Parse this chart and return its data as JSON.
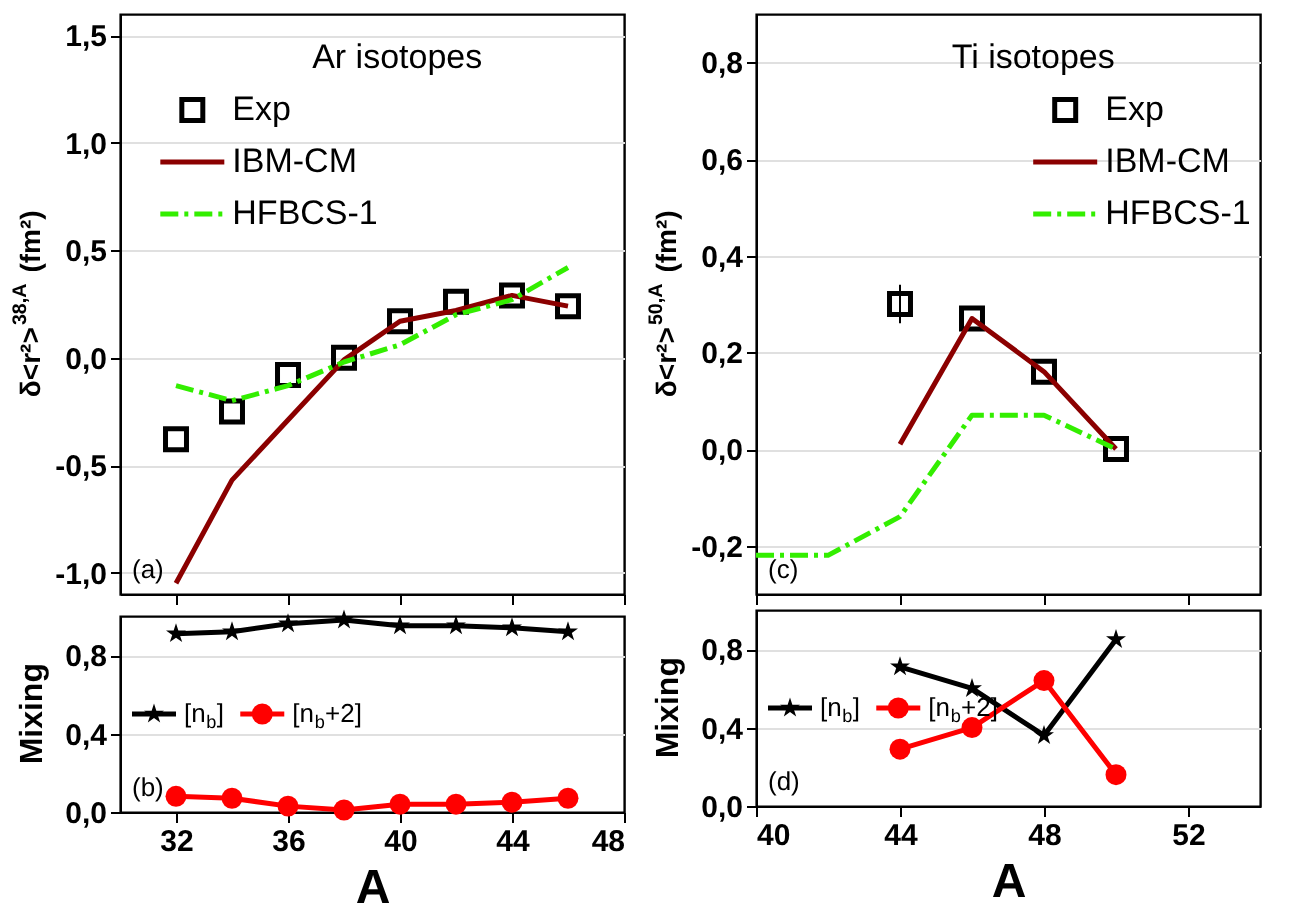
{
  "chart_data": [
    {
      "type": "line",
      "title": "Ar isotopes",
      "ylabel": "δ<r²>$^{38,A}$ (fm²)",
      "xlim": [
        30,
        48
      ],
      "xticks": [
        32,
        36,
        40,
        44,
        48
      ],
      "ylim": [
        -1.1,
        1.6
      ],
      "yticks": [
        {
          "value": -1.0,
          "label": "-1,0"
        },
        {
          "value": -0.5,
          "label": "-0,5"
        },
        {
          "value": 0.0,
          "label": "0,0"
        },
        {
          "value": 0.5,
          "label": "0,5"
        },
        {
          "value": 1.0,
          "label": "1,0"
        },
        {
          "value": 1.5,
          "label": "1,5"
        }
      ],
      "tick_labels": "y",
      "grid": "y",
      "legend": "top left",
      "annotations": [
        "(a)"
      ],
      "x": [
        32,
        34,
        36,
        38,
        40,
        42,
        44,
        46
      ],
      "series": [
        {
          "name": "Exp",
          "type": "scatter",
          "marker": "square",
          "color": "#000000",
          "values": [
            -0.38,
            -0.25,
            -0.08,
            0.0,
            0.17,
            0.26,
            0.29,
            0.24
          ]
        },
        {
          "name": "IBM-CM",
          "marker": "none",
          "line_style": "solid",
          "color": "#8b0000",
          "values": [
            -1.05,
            -0.57,
            -0.29,
            -0.01,
            0.17,
            0.22,
            0.29,
            0.24
          ]
        },
        {
          "name": "HFBCS-1",
          "marker": "none",
          "line_style": "dashed",
          "color": "#33ee00",
          "values": [
            -0.13,
            -0.2,
            -0.13,
            -0.02,
            0.06,
            0.2,
            0.27,
            0.42
          ]
        }
      ]
    },
    {
      "type": "line",
      "title": "Ti isotopes",
      "ylabel": "δ<r²>$^{50,A}$ (fm²)",
      "xlim": [
        40,
        54
      ],
      "xticks": [
        40,
        44,
        48,
        52
      ],
      "ylim": [
        -0.3,
        0.9
      ],
      "yticks": [
        {
          "value": -0.2,
          "label": "-0,2"
        },
        {
          "value": 0.0,
          "label": "0,0"
        },
        {
          "value": 0.2,
          "label": "0,2"
        },
        {
          "value": 0.4,
          "label": "0,4"
        },
        {
          "value": 0.6,
          "label": "0,6"
        },
        {
          "value": 0.8,
          "label": "0,8"
        }
      ],
      "tick_labels": "y",
      "grid": "y",
      "legend": "top right",
      "annotations": [
        "(c)"
      ],
      "x": [
        44,
        46,
        48,
        50
      ],
      "series": [
        {
          "name": "Exp",
          "type": "scatter",
          "marker": "square",
          "color": "#000000",
          "values": [
            0.3,
            0.27,
            0.16,
            0.0
          ],
          "errors": [
            0.04,
            null,
            null,
            null
          ]
        },
        {
          "name": "IBM-CM",
          "marker": "none",
          "line_style": "solid",
          "color": "#8b0000",
          "values": [
            0.01,
            0.27,
            0.16,
            0.0
          ]
        },
        {
          "name": "HFBCS-1",
          "marker": "none",
          "line_style": "dashed",
          "color": "#33ee00",
          "x": [
            40,
            42,
            44,
            46,
            48,
            50
          ],
          "values": [
            -0.22,
            -0.22,
            -0.14,
            0.07,
            0.07,
            0.0
          ]
        }
      ]
    },
    {
      "type": "line",
      "xlabel": "A",
      "ylabel": "Mixing",
      "xlim": [
        30,
        48
      ],
      "xticks": [
        32,
        36,
        40,
        44,
        48
      ],
      "ylim": [
        0,
        1.0
      ],
      "yticks": [
        {
          "value": 0.0,
          "label": "0,0"
        },
        {
          "value": 0.4,
          "label": "0,4"
        },
        {
          "value": 0.8,
          "label": "0,8"
        }
      ],
      "grid": "y",
      "legend": "left",
      "annotations": [
        "(b)"
      ],
      "x": [
        32,
        34,
        36,
        38,
        40,
        42,
        44,
        46
      ],
      "series": [
        {
          "name": "[n$_{b}$]",
          "marker": "star",
          "line_style": "solid",
          "color": "#000000",
          "values": [
            0.91,
            0.92,
            0.96,
            0.98,
            0.95,
            0.95,
            0.94,
            0.92
          ]
        },
        {
          "name": "[n$_{b}$+2]",
          "marker": "circle",
          "line_style": "solid",
          "color": "#ff0000",
          "values": [
            0.08,
            0.07,
            0.03,
            0.01,
            0.04,
            0.04,
            0.05,
            0.07
          ]
        }
      ]
    },
    {
      "type": "line",
      "xlabel": "A",
      "ylabel": "Mixing",
      "xlim": [
        40,
        54
      ],
      "xticks": [
        40,
        44,
        48,
        52
      ],
      "ylim": [
        0,
        1.0
      ],
      "yticks": [
        {
          "value": 0.0,
          "label": "0,0"
        },
        {
          "value": 0.4,
          "label": "0,4"
        },
        {
          "value": 0.8,
          "label": "0,8"
        }
      ],
      "grid": "y",
      "legend": "left",
      "annotations": [
        "(d)"
      ],
      "x": [
        44,
        46,
        48,
        50
      ],
      "series": [
        {
          "name": "[n$_{b}$]",
          "marker": "star",
          "line_style": "solid",
          "color": "#000000",
          "values": [
            0.71,
            0.6,
            0.36,
            0.85
          ]
        },
        {
          "name": "[n$_{b}$+2]",
          "marker": "circle",
          "line_style": "solid",
          "color": "#ff0000",
          "values": [
            0.29,
            0.4,
            0.64,
            0.16
          ]
        }
      ]
    }
  ]
}
